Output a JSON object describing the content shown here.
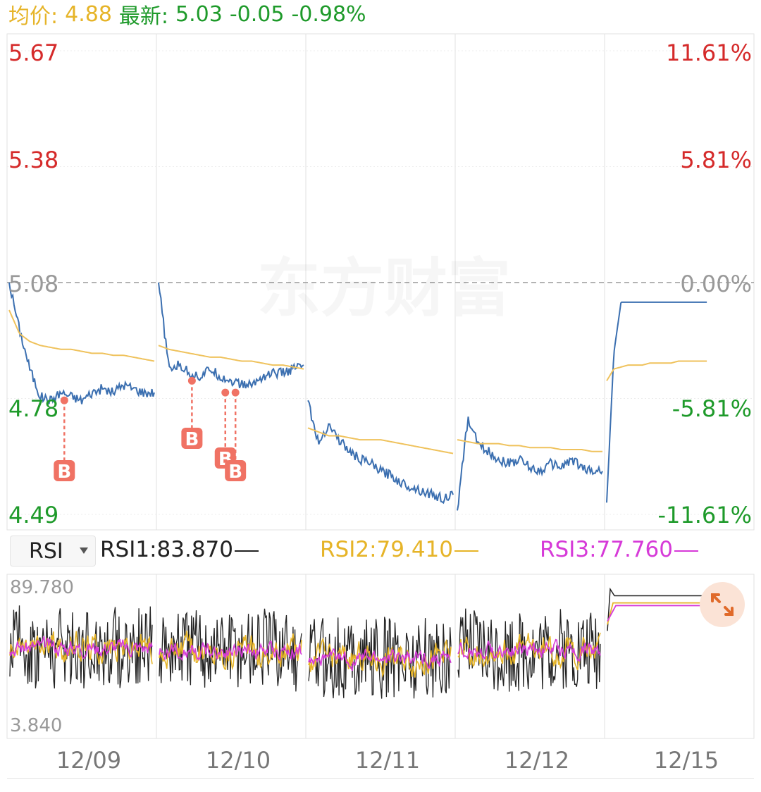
{
  "header": {
    "avg_label": "均价:",
    "avg_value": "4.88",
    "latest_label": "最新:",
    "latest_value": "5.03",
    "change": "-0.05",
    "change_pct": "-0.98%"
  },
  "watermark": "东方财富",
  "colors": {
    "price_line": "#3b6fb0",
    "avg_line": "#efc25c",
    "up": "#d52a2a",
    "down": "#1e9a2a",
    "flat": "#999999",
    "rsi1": "#222222",
    "rsi2": "#e6b428",
    "rsi3": "#d63ad8",
    "marker": "#f07264"
  },
  "indicator": {
    "selected": "RSI",
    "rsi1_label": "RSI1:83.870",
    "rsi2_label": "RSI2:79.410",
    "rsi3_label": "RSI3:77.760"
  },
  "chart_data": {
    "type": "line",
    "price_axis": {
      "min": 4.49,
      "max": 5.67,
      "prev_close": 5.08,
      "left_ticks": [
        "5.67",
        "5.38",
        "5.08",
        "4.78",
        "4.49"
      ],
      "right_ticks": [
        "11.61%",
        "5.81%",
        "0.00%",
        "-5.81%",
        "-11.61%"
      ]
    },
    "dates": [
      "12/09",
      "12/10",
      "12/11",
      "12/12",
      "12/15"
    ],
    "series": [
      {
        "day_prices": [
          [
            5.08,
            4.96,
            4.86,
            4.79,
            4.78,
            4.8,
            4.79,
            4.78,
            4.8,
            4.81,
            4.8,
            4.82,
            4.81,
            4.8,
            4.8
          ],
          [
            5.08,
            4.86,
            4.87,
            4.85,
            4.84,
            4.86,
            4.84,
            4.83,
            4.82,
            4.82,
            4.84,
            4.85,
            4.85,
            4.86,
            4.87
          ],
          [
            4.78,
            4.67,
            4.72,
            4.68,
            4.65,
            4.63,
            4.62,
            4.6,
            4.59,
            4.57,
            4.56,
            4.55,
            4.54,
            4.53,
            4.54
          ],
          [
            4.5,
            4.73,
            4.67,
            4.65,
            4.63,
            4.62,
            4.63,
            4.61,
            4.6,
            4.62,
            4.61,
            4.63,
            4.61,
            4.6,
            4.6
          ],
          [
            4.52,
            4.9,
            5.03,
            5.03,
            5.03,
            5.03,
            5.03,
            5.03,
            5.03,
            5.03,
            5.03,
            5.03,
            5.03,
            5.03,
            5.03
          ]
        ]
      },
      {
        "day_avg": [
          [
            5.01,
            4.95,
            4.93,
            4.92,
            4.915,
            4.91,
            4.91,
            4.905,
            4.9,
            4.9,
            4.895,
            4.895,
            4.89,
            4.885,
            4.88
          ],
          [
            4.92,
            4.91,
            4.905,
            4.9,
            4.895,
            4.89,
            4.89,
            4.885,
            4.88,
            4.88,
            4.875,
            4.87,
            4.87,
            4.865,
            4.86
          ],
          [
            4.71,
            4.7,
            4.69,
            4.69,
            4.685,
            4.68,
            4.68,
            4.68,
            4.675,
            4.67,
            4.665,
            4.66,
            4.655,
            4.65,
            4.645
          ],
          [
            4.68,
            4.675,
            4.67,
            4.67,
            4.67,
            4.665,
            4.665,
            4.66,
            4.66,
            4.66,
            4.655,
            4.655,
            4.655,
            4.65,
            4.65
          ],
          [
            4.83,
            4.86,
            4.865,
            4.87,
            4.87,
            4.87,
            4.875,
            4.875,
            4.875,
            4.875,
            4.88,
            4.88,
            4.88,
            4.88,
            4.88
          ]
        ]
      }
    ],
    "buy_marks": [
      {
        "day": 0,
        "t": 0.38,
        "price": 4.78,
        "label": "B"
      },
      {
        "day": 1,
        "t": 0.23,
        "price": 4.83,
        "label": "B"
      },
      {
        "day": 1,
        "t": 0.46,
        "price": 4.8,
        "label": "B"
      },
      {
        "day": 1,
        "t": 0.53,
        "price": 4.8,
        "label": "B"
      }
    ],
    "rsi_axis": {
      "min": 3.84,
      "max": 89.78,
      "top_label": "89.780",
      "bottom_label": "3.840"
    },
    "rsi_last": {
      "rsi1": 83.87,
      "rsi2": 79.41,
      "rsi3": 77.76
    }
  }
}
